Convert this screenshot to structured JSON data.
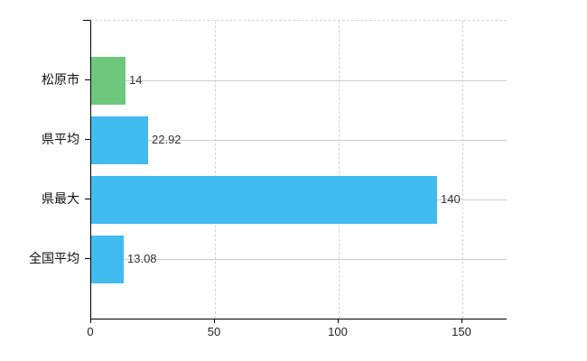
{
  "chart_data": {
    "type": "bar",
    "orientation": "horizontal",
    "title": "",
    "xlabel": "",
    "ylabel": "",
    "categories": [
      "松原市",
      "県平均",
      "県最大",
      "全国平均"
    ],
    "values": [
      14,
      22.92,
      140,
      13.08
    ],
    "value_labels": [
      "14",
      "22.92",
      "140",
      "13.08"
    ],
    "bar_colors": [
      "#6dc87e",
      "#41bbf0",
      "#41bbf0",
      "#41bbf0"
    ],
    "x_ticks": [
      0,
      50,
      100,
      150
    ],
    "x_tick_labels": [
      "0",
      "50",
      "100",
      "150"
    ],
    "xlim": [
      0,
      168
    ],
    "grid": true,
    "legend": false,
    "background_color": "#ffffff",
    "axis_color": "#000000",
    "gridline_color": "#cccccc"
  }
}
